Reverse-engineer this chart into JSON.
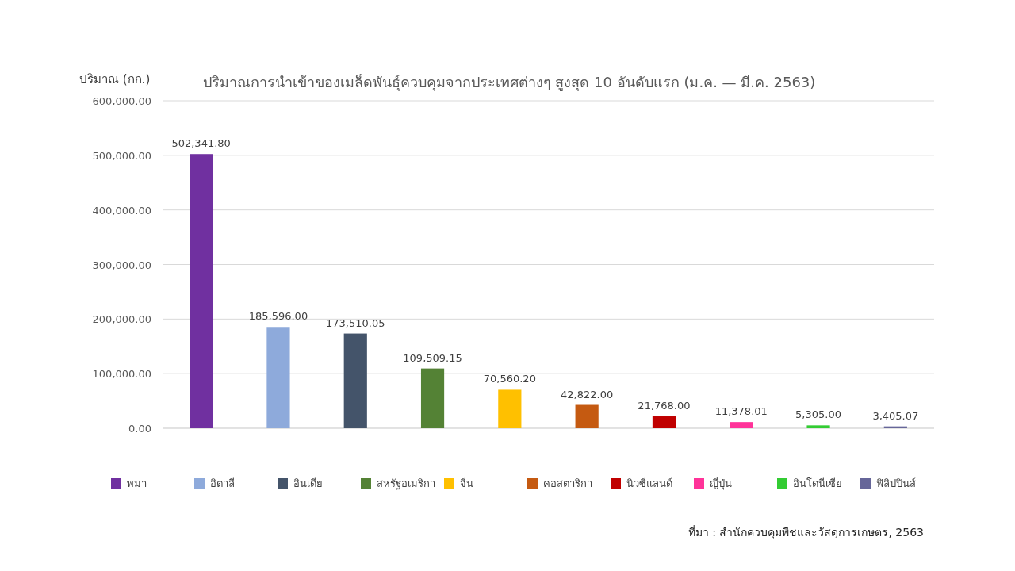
{
  "chart_data": {
    "type": "bar",
    "title": "ปริมาณการนำเข้าของเมล็ดพันธุ์ควบคุมจากประเทศต่างๆ สูงสุด 10 อันดับแรก (ม.ค. — มี.ค. 2563)",
    "ylabel": "ปริมาณ (กก.)",
    "categories": [
      null,
      null,
      null,
      null,
      null,
      null,
      null,
      null,
      null,
      null
    ],
    "series": [
      {
        "name": "พม่า",
        "color": "#7030a0",
        "values": [
          502341.8,
          null,
          null,
          null,
          null,
          null,
          null,
          null,
          null,
          null
        ]
      },
      {
        "name": "อิตาลี",
        "color": "#8eaadb",
        "values": [
          null,
          185596.0,
          null,
          null,
          null,
          null,
          null,
          null,
          null,
          null
        ]
      },
      {
        "name": "อินเดีย",
        "color": "#44546a",
        "values": [
          null,
          null,
          173510.05,
          null,
          null,
          null,
          null,
          null,
          null,
          null
        ]
      },
      {
        "name": "สหรัฐอเมริกา",
        "color": "#548235",
        "values": [
          null,
          null,
          null,
          109509.15,
          null,
          null,
          null,
          null,
          null,
          null
        ]
      },
      {
        "name": "จีน",
        "color": "#ffc000",
        "values": [
          null,
          null,
          null,
          null,
          70560.2,
          null,
          null,
          null,
          null,
          null
        ]
      },
      {
        "name": "คอสตาริกา",
        "color": "#c55a11",
        "values": [
          null,
          null,
          null,
          null,
          null,
          42822.0,
          null,
          null,
          null,
          null
        ]
      },
      {
        "name": "นิวซีแลนด์",
        "color": "#c00000",
        "values": [
          null,
          null,
          null,
          null,
          null,
          null,
          21768.0,
          null,
          null,
          null
        ]
      },
      {
        "name": "ญี่ปุ่น",
        "color": "#ff3399",
        "values": [
          null,
          null,
          null,
          null,
          null,
          null,
          null,
          11378.01,
          null,
          null
        ]
      },
      {
        "name": "อินโดนีเซีย",
        "color": "#33cc33",
        "values": [
          null,
          null,
          null,
          null,
          null,
          null,
          null,
          null,
          5305.0,
          null
        ]
      },
      {
        "name": "ฟิลิปปินส์",
        "color": "#666699",
        "values": [
          null,
          null,
          null,
          null,
          null,
          null,
          null,
          null,
          null,
          3405.07
        ]
      }
    ],
    "value_labels": [
      "502,341.80",
      "185,596.00",
      "173,510.05",
      "109,509.15",
      "70,560.20",
      "42,822.00",
      "21,768.00",
      "11,378.01",
      "5,305.00",
      "3,405.07"
    ],
    "ylim": [
      0,
      600000
    ],
    "yticks": [
      {
        "value": 0,
        "label": "0.00"
      },
      {
        "value": 100000,
        "label": "100,000.00"
      },
      {
        "value": 200000,
        "label": "200,000.00"
      },
      {
        "value": 300000,
        "label": "300,000.00"
      },
      {
        "value": 400000,
        "label": "400,000.00"
      },
      {
        "value": 500000,
        "label": "500,000.00"
      },
      {
        "value": 600000,
        "label": "600,000.00"
      }
    ],
    "grid": "y",
    "legend": "bottom",
    "annotations": [
      "ที่มา : สำนักควบคุมพืชและวัสดุการเกษตร, 2563"
    ]
  }
}
